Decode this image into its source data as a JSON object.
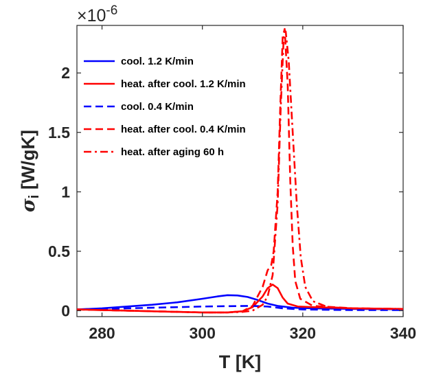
{
  "chart_data": {
    "type": "line",
    "xlabel": "T [K]",
    "ylabel": {
      "symbol": "σ",
      "subscript": "i",
      "unit": " [W/gK]"
    },
    "y_exponent": {
      "base": "×10",
      "power": "-6"
    },
    "xlim": [
      275,
      340
    ],
    "ylim": [
      -0.05,
      2.4
    ],
    "x_ticks": [
      280,
      300,
      320,
      340
    ],
    "y_ticks": [
      0,
      0.5,
      1,
      1.5,
      2
    ],
    "y_tick_labels": [
      "0",
      "0.5",
      "1",
      "1.5",
      "2"
    ],
    "grid": false,
    "legend_position": "top-left",
    "series": [
      {
        "name": "cool. 1.2 K/min",
        "color": "#0000ff",
        "style": "solid",
        "points": [
          [
            275,
            0.01
          ],
          [
            280,
            0.02
          ],
          [
            285,
            0.035
          ],
          [
            290,
            0.05
          ],
          [
            295,
            0.07
          ],
          [
            300,
            0.1
          ],
          [
            303,
            0.12
          ],
          [
            305,
            0.13
          ],
          [
            307,
            0.128
          ],
          [
            309,
            0.115
          ],
          [
            311,
            0.09
          ],
          [
            313,
            0.06
          ],
          [
            315,
            0.04
          ],
          [
            318,
            0.025
          ],
          [
            322,
            0.02
          ],
          [
            330,
            0.015
          ],
          [
            340,
            0.012
          ]
        ]
      },
      {
        "name": "heat. after cool. 1.2 K/min",
        "color": "#ff0000",
        "style": "solid",
        "points": [
          [
            275,
            0.01
          ],
          [
            285,
            0.0
          ],
          [
            295,
            -0.01
          ],
          [
            300,
            -0.015
          ],
          [
            305,
            -0.015
          ],
          [
            308,
            -0.005
          ],
          [
            310,
            0.03
          ],
          [
            312,
            0.12
          ],
          [
            313,
            0.19
          ],
          [
            314,
            0.22
          ],
          [
            315,
            0.19
          ],
          [
            316,
            0.11
          ],
          [
            317,
            0.06
          ],
          [
            319,
            0.035
          ],
          [
            322,
            0.03
          ],
          [
            330,
            0.02
          ],
          [
            340,
            0.015
          ]
        ]
      },
      {
        "name": "cool. 0.4 K/min",
        "color": "#0000ff",
        "style": "dashed",
        "points": [
          [
            275,
            0.01
          ],
          [
            285,
            0.02
          ],
          [
            295,
            0.03
          ],
          [
            300,
            0.035
          ],
          [
            305,
            0.038
          ],
          [
            310,
            0.04
          ],
          [
            313,
            0.035
          ],
          [
            316,
            0.02
          ],
          [
            320,
            0.01
          ],
          [
            330,
            0.005
          ],
          [
            340,
            0.005
          ]
        ]
      },
      {
        "name": "heat. after cool. 0.4 K/min",
        "color": "#ff0000",
        "style": "dashed",
        "points": [
          [
            275,
            0.01
          ],
          [
            285,
            0.0
          ],
          [
            295,
            -0.01
          ],
          [
            300,
            -0.015
          ],
          [
            305,
            -0.015
          ],
          [
            308,
            -0.005
          ],
          [
            310,
            0.04
          ],
          [
            312,
            0.2
          ],
          [
            313,
            0.34
          ],
          [
            313.7,
            0.38
          ],
          [
            314.2,
            0.5
          ],
          [
            315,
            1.0
          ],
          [
            315.5,
            1.7
          ],
          [
            316,
            2.3
          ],
          [
            316.4,
            2.37
          ],
          [
            317,
            1.9
          ],
          [
            317.5,
            1.1
          ],
          [
            318,
            0.55
          ],
          [
            318.5,
            0.25
          ],
          [
            319.5,
            0.1
          ],
          [
            322,
            0.04
          ],
          [
            330,
            0.02
          ],
          [
            340,
            0.015
          ]
        ]
      },
      {
        "name": "heat. after aging 60 h",
        "color": "#ff0000",
        "style": "dashdot",
        "points": [
          [
            275,
            0.01
          ],
          [
            285,
            0.0
          ],
          [
            295,
            -0.01
          ],
          [
            300,
            -0.015
          ],
          [
            305,
            -0.015
          ],
          [
            308,
            -0.01
          ],
          [
            310,
            0.0
          ],
          [
            312,
            0.05
          ],
          [
            313,
            0.12
          ],
          [
            314,
            0.3
          ],
          [
            315,
            0.9
          ],
          [
            315.6,
            1.7
          ],
          [
            316.2,
            2.3
          ],
          [
            316.6,
            2.35
          ],
          [
            317.2,
            2.1
          ],
          [
            318,
            1.5
          ],
          [
            318.8,
            0.9
          ],
          [
            319.6,
            0.45
          ],
          [
            320.5,
            0.2
          ],
          [
            322,
            0.08
          ],
          [
            325,
            0.03
          ],
          [
            330,
            0.02
          ],
          [
            340,
            0.015
          ]
        ]
      }
    ]
  }
}
